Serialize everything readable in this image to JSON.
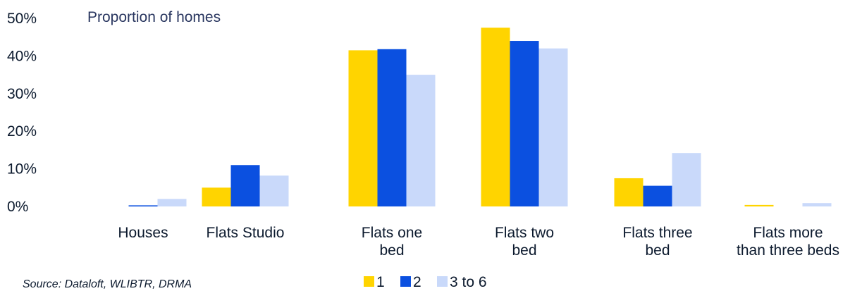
{
  "chart_data": {
    "type": "bar",
    "ylabel": "Proportion of homes",
    "ylim": [
      0,
      50
    ],
    "yticks": [
      0,
      10,
      20,
      30,
      40,
      50
    ],
    "ytick_labels": [
      "0%",
      "10%",
      "20%",
      "30%",
      "40%",
      "50%"
    ],
    "categories": [
      [
        "Houses"
      ],
      [
        "Flats Studio"
      ],
      [
        "Flats one",
        "bed"
      ],
      [
        "Flats two",
        "bed"
      ],
      [
        "Flats three",
        "bed"
      ],
      [
        "Flats more",
        "than three beds"
      ]
    ],
    "series": [
      {
        "name": "1",
        "color": "#ffd400",
        "values": [
          0,
          5,
          41.5,
          47.5,
          7.5,
          0.4
        ]
      },
      {
        "name": "2",
        "color": "#0b50e0",
        "values": [
          0.3,
          11,
          41.8,
          44,
          5.5,
          0
        ]
      },
      {
        "name": "3 to 6",
        "color": "#c9d9fa",
        "values": [
          2,
          8.2,
          35,
          42,
          14.2,
          0.9
        ]
      }
    ],
    "grid": false,
    "legend_position": "bottom-center"
  },
  "source": "Source: Dataloft, WLIBTR, DRMA"
}
